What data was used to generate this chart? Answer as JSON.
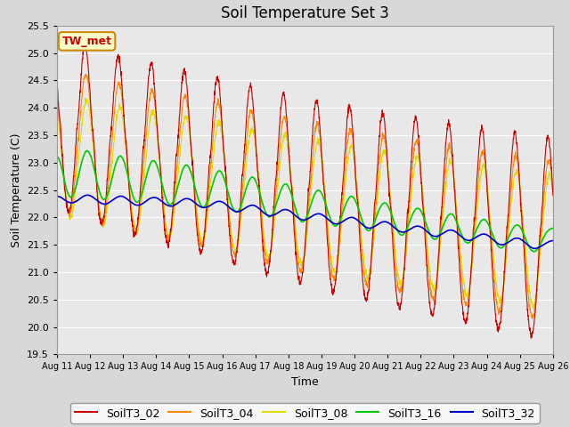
{
  "title": "Soil Temperature Set 3",
  "xlabel": "Time",
  "ylabel": "Soil Temperature (C)",
  "ylim": [
    19.5,
    25.5
  ],
  "yticks": [
    19.5,
    20.0,
    20.5,
    21.0,
    21.5,
    22.0,
    22.5,
    23.0,
    23.5,
    24.0,
    24.5,
    25.0,
    25.5
  ],
  "xtick_labels": [
    "Aug 11",
    "Aug 12",
    "Aug 13",
    "Aug 14",
    "Aug 15",
    "Aug 16",
    "Aug 17",
    "Aug 18",
    "Aug 19",
    "Aug 20",
    "Aug 21",
    "Aug 22",
    "Aug 23",
    "Aug 24",
    "Aug 25",
    "Aug 26"
  ],
  "colors": {
    "SoilT3_02": "#cc0000",
    "SoilT3_04": "#ff8800",
    "SoilT3_08": "#dddd00",
    "SoilT3_16": "#00cc00",
    "SoilT3_32": "#0000cc"
  },
  "annotation": {
    "text": "TW_met",
    "facecolor": "#ffffcc",
    "edgecolor": "#cc8800",
    "textcolor": "#cc0000",
    "fontsize": 9
  },
  "bg_color": "#e8e8e8",
  "grid_color": "#ffffff",
  "legend_fontsize": 9,
  "title_fontsize": 12,
  "fig_facecolor": "#d8d8d8"
}
